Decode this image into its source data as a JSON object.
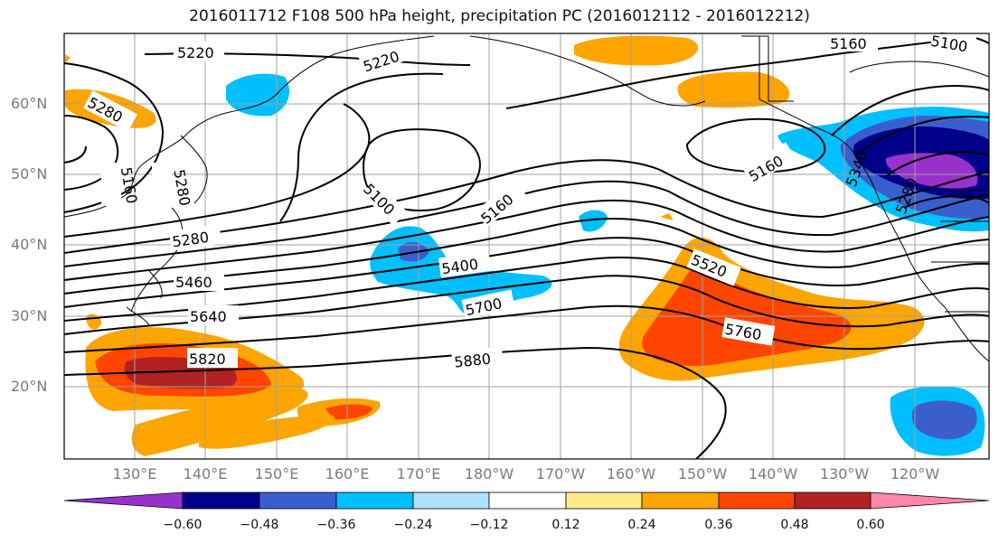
{
  "title": "2016011712 F108 500 hPa height, precipitation PC (2016012112 - 2016012212)",
  "latitude_labels": [
    {
      "text": "60°N",
      "lat": 60
    },
    {
      "text": "50°N",
      "lat": 50
    },
    {
      "text": "40°N",
      "lat": 40
    },
    {
      "text": "30°N",
      "lat": 30
    },
    {
      "text": "20°N",
      "lat": 20
    }
  ],
  "longitude_labels": [
    "130°E",
    "140°E",
    "150°E",
    "160°E",
    "170°E",
    "180°W",
    "170°W",
    "160°W",
    "150°W",
    "140°W",
    "130°W",
    "120°W"
  ],
  "colorbar": {
    "ticks": [
      "−0.60",
      "−0.48",
      "−0.36",
      "−0.24",
      "−0.12",
      "0.12",
      "0.24",
      "0.36",
      "0.48",
      "0.60"
    ],
    "colors": [
      "#9932cc",
      "#00008b",
      "#3a5fcd",
      "#00bfff",
      "#b0e2ff",
      "#ffffff",
      "#ffec8b",
      "#ffa500",
      "#ff4500",
      "#b22222",
      "#ff88aa"
    ]
  },
  "contour_labels": [
    "5220",
    "5220",
    "5160",
    "5100",
    "5280",
    "5160",
    "5280",
    "5100",
    "5160",
    "5280",
    "5460",
    "5400",
    "5640",
    "5700",
    "5520",
    "5820",
    "5880",
    "5760",
    "5160",
    "5160",
    "5340",
    "5280"
  ],
  "colors": {
    "frame": "#000000",
    "grid": "#a0a0a0",
    "label_gray": "#7a7a7a"
  }
}
